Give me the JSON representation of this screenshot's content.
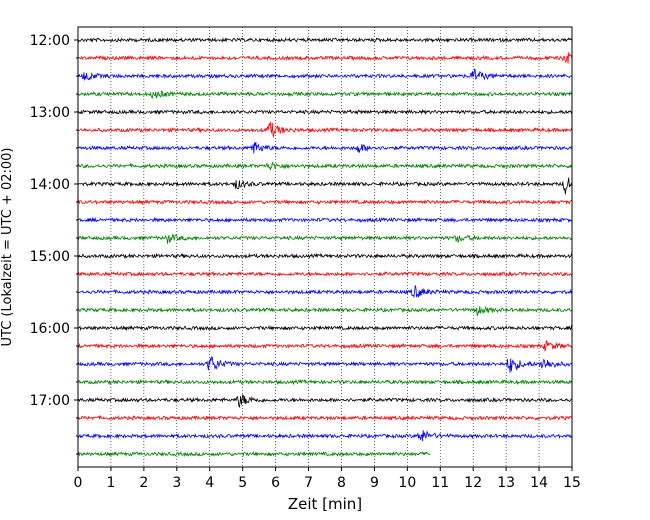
{
  "chart_data": {
    "type": "line",
    "subtype": "helicorder",
    "xlabel": "Zeit  [min]",
    "ylabel": "UTC (Lokalzeit = UTC + 02:00)",
    "xlim": [
      0,
      15
    ],
    "x_ticks": [
      "0",
      "1",
      "2",
      "3",
      "4",
      "5",
      "6",
      "7",
      "8",
      "9",
      "10",
      "11",
      "12",
      "13",
      "14",
      "15"
    ],
    "y_tick_labels": [
      "12:00",
      "13:00",
      "14:00",
      "15:00",
      "16:00",
      "17:00"
    ],
    "grid": "vertical dotted at each minute",
    "trace_interval_min": 15,
    "trace_color_cycle": [
      "#000000",
      "#ff0000",
      "#0000ff",
      "#008000"
    ],
    "traces": [
      {
        "start": "12:00",
        "end_min": 15,
        "events": []
      },
      {
        "start": "12:15",
        "end_min": 15,
        "events": [
          {
            "t": 14.8,
            "amp": 3
          }
        ]
      },
      {
        "start": "12:30",
        "end_min": 15,
        "events": [
          {
            "t": 0.2,
            "amp": 2
          },
          {
            "t": 12.0,
            "amp": 3
          }
        ]
      },
      {
        "start": "12:45",
        "end_min": 15,
        "events": [
          {
            "t": 2.3,
            "amp": 2
          }
        ]
      },
      {
        "start": "13:00",
        "end_min": 15,
        "events": []
      },
      {
        "start": "13:15",
        "end_min": 15,
        "events": [
          {
            "t": 5.8,
            "amp": 4
          }
        ]
      },
      {
        "start": "13:30",
        "end_min": 15,
        "events": [
          {
            "t": 5.3,
            "amp": 3
          },
          {
            "t": 8.5,
            "amp": 2
          }
        ]
      },
      {
        "start": "13:45",
        "end_min": 15,
        "events": [
          {
            "t": 5.8,
            "amp": 1.5
          }
        ]
      },
      {
        "start": "14:00",
        "end_min": 15,
        "events": [
          {
            "t": 4.8,
            "amp": 2
          },
          {
            "t": 14.8,
            "amp": 4
          }
        ]
      },
      {
        "start": "14:15",
        "end_min": 15,
        "events": []
      },
      {
        "start": "14:30",
        "end_min": 15,
        "events": []
      },
      {
        "start": "14:45",
        "end_min": 15,
        "events": [
          {
            "t": 2.7,
            "amp": 2
          },
          {
            "t": 11.5,
            "amp": 1.5
          }
        ]
      },
      {
        "start": "15:00",
        "end_min": 15,
        "events": []
      },
      {
        "start": "15:15",
        "end_min": 15,
        "events": []
      },
      {
        "start": "15:30",
        "end_min": 15,
        "events": [
          {
            "t": 10.2,
            "amp": 3
          }
        ]
      },
      {
        "start": "15:45",
        "end_min": 15,
        "events": [
          {
            "t": 12.1,
            "amp": 2
          }
        ]
      },
      {
        "start": "16:00",
        "end_min": 15,
        "events": []
      },
      {
        "start": "16:15",
        "end_min": 15,
        "events": [
          {
            "t": 14.2,
            "amp": 2
          }
        ]
      },
      {
        "start": "16:30",
        "end_min": 15,
        "events": [
          {
            "t": 4.0,
            "amp": 4
          },
          {
            "t": 13.1,
            "amp": 4
          },
          {
            "t": 14.1,
            "amp": 3
          }
        ]
      },
      {
        "start": "16:45",
        "end_min": 15,
        "events": []
      },
      {
        "start": "17:00",
        "end_min": 15,
        "events": [
          {
            "t": 4.9,
            "amp": 3
          }
        ]
      },
      {
        "start": "17:15",
        "end_min": 15,
        "events": []
      },
      {
        "start": "17:30",
        "end_min": 15,
        "events": [
          {
            "t": 10.4,
            "amp": 3
          }
        ]
      },
      {
        "start": "17:45",
        "end_min": 10.7,
        "events": []
      }
    ]
  }
}
